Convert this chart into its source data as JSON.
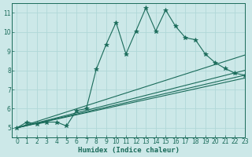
{
  "xlabel": "Humidex (Indice chaleur)",
  "bg_color": "#cce8e8",
  "line_color": "#1a6b5a",
  "grid_color": "#b0d8d8",
  "xlim": [
    -0.5,
    23
  ],
  "ylim": [
    4.5,
    11.5
  ],
  "xticks": [
    0,
    1,
    2,
    3,
    4,
    5,
    6,
    7,
    8,
    9,
    10,
    11,
    12,
    13,
    14,
    15,
    16,
    17,
    18,
    19,
    20,
    21,
    22,
    23
  ],
  "yticks": [
    5,
    6,
    7,
    8,
    9,
    10,
    11
  ],
  "main_line": {
    "x": [
      0,
      1,
      2,
      3,
      4,
      5,
      6,
      7,
      8,
      9,
      10,
      11,
      12,
      13,
      14,
      15,
      16,
      17,
      18,
      19,
      20,
      21,
      22,
      23
    ],
    "y": [
      5.0,
      5.3,
      5.2,
      5.3,
      5.3,
      5.1,
      5.9,
      6.0,
      8.05,
      9.35,
      10.5,
      8.85,
      10.05,
      11.25,
      10.05,
      11.15,
      10.3,
      9.7,
      9.6,
      8.85,
      8.4,
      8.1,
      7.85,
      7.75
    ]
  },
  "trend_lines": [
    {
      "x": [
        0,
        23
      ],
      "y": [
        5.0,
        7.6
      ]
    },
    {
      "x": [
        0,
        23
      ],
      "y": [
        5.0,
        7.75
      ]
    },
    {
      "x": [
        0,
        23
      ],
      "y": [
        5.0,
        8.0
      ]
    },
    {
      "x": [
        0,
        23
      ],
      "y": [
        5.0,
        8.8
      ]
    }
  ]
}
